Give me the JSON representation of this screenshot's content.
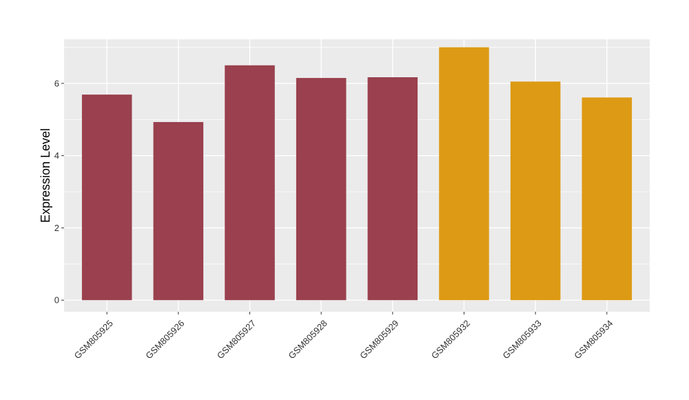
{
  "chart_data": {
    "type": "bar",
    "title": "",
    "xlabel": "",
    "ylabel": "Expression Level",
    "ylim": [
      -0.32,
      7.22
    ],
    "yticks": [
      0,
      2,
      4,
      6
    ],
    "grid": true,
    "categories": [
      "GSM805925",
      "GSM805926",
      "GSM805927",
      "GSM805928",
      "GSM805929",
      "GSM805932",
      "GSM805933",
      "GSM805934"
    ],
    "values": [
      5.69,
      4.93,
      6.5,
      6.15,
      6.17,
      7.0,
      6.05,
      5.61
    ],
    "bar_colors": [
      "#9a404e",
      "#9a404e",
      "#9a404e",
      "#9a404e",
      "#9a404e",
      "#dd9a14",
      "#dd9a14",
      "#dd9a14"
    ],
    "panel_background": "#ebebeb",
    "grid_color": "#ffffff"
  }
}
